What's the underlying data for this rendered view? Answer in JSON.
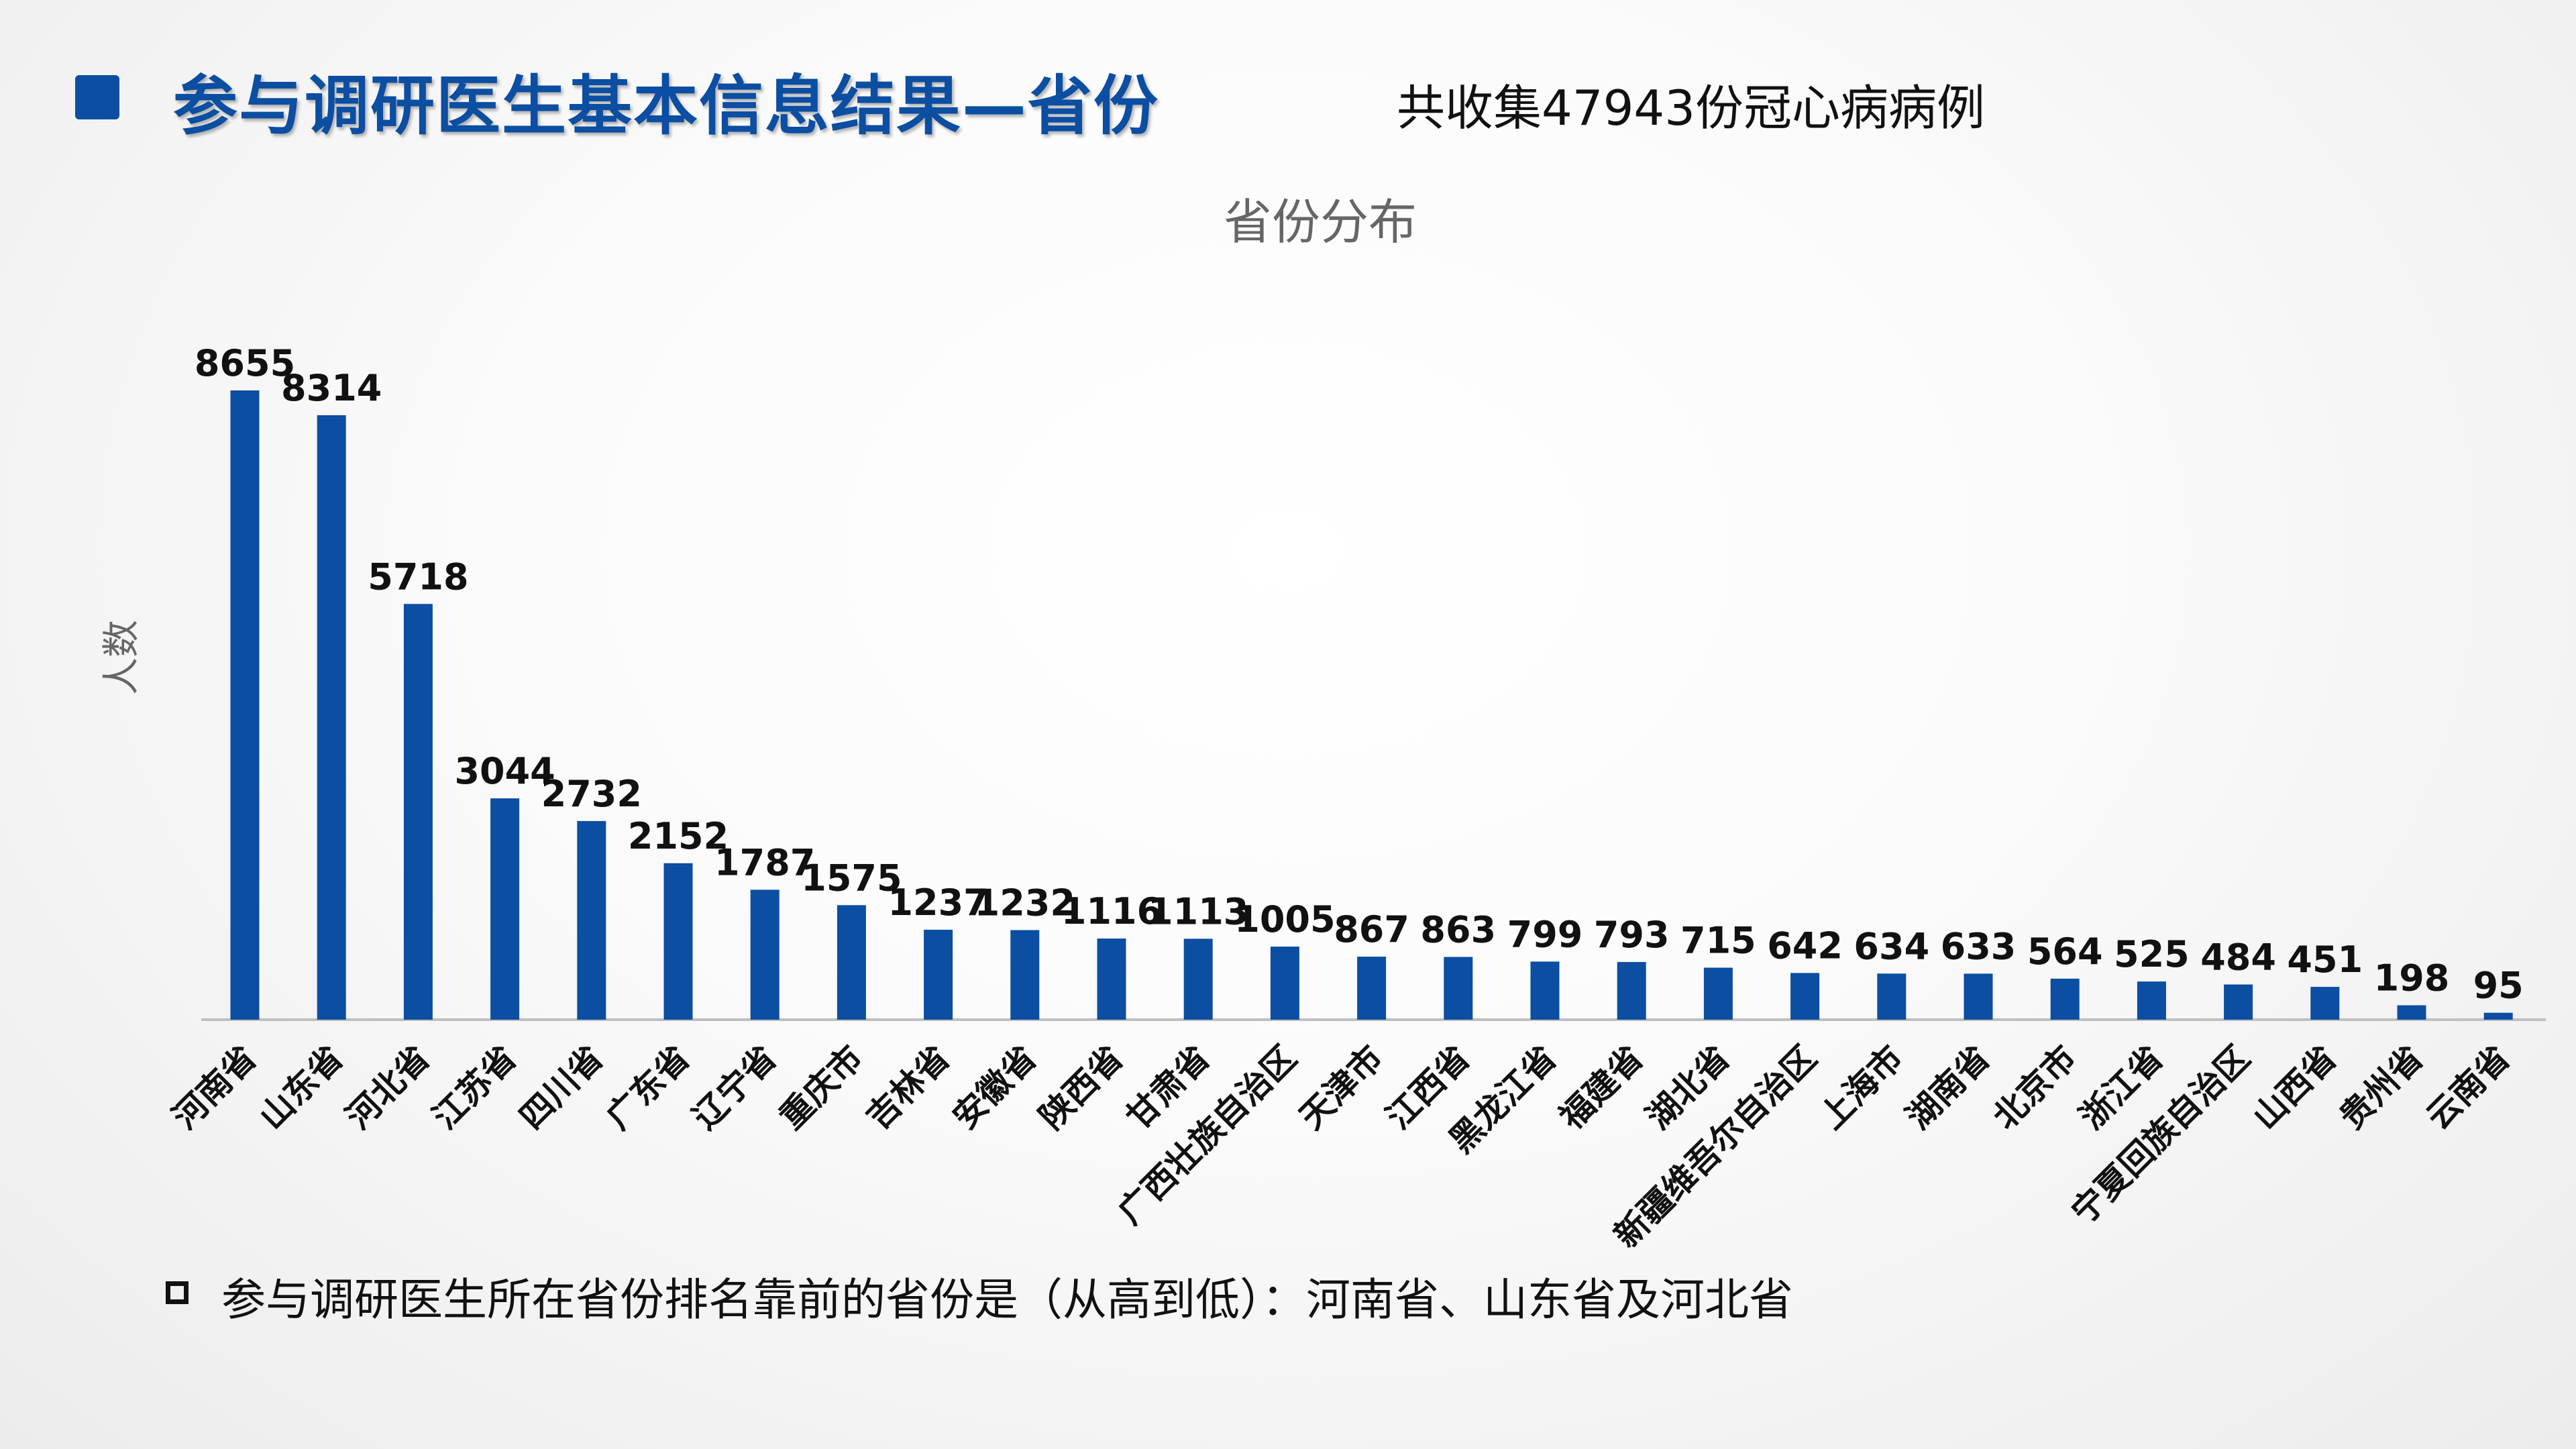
{
  "header": {
    "title": "参与调研医生基本信息结果—省份",
    "subtitle": "共收集47943份冠心病病例"
  },
  "footer": {
    "note": "参与调研医生所在省份排名靠前的省份是（从高到低）：河南省、山东省及河北省"
  },
  "colors": {
    "accent": "#0b4ea2",
    "bar": "#0b4ea2",
    "axis": "#bfbfbf",
    "title_text": "#666666"
  },
  "chart_data": {
    "type": "bar",
    "title": "省份分布",
    "ylabel": "人数",
    "xlabel": "",
    "grid": false,
    "ylim": [
      0,
      8655
    ],
    "categories": [
      "河南省",
      "山东省",
      "河北省",
      "江苏省",
      "四川省",
      "广东省",
      "辽宁省",
      "重庆市",
      "吉林省",
      "安徽省",
      "陕西省",
      "甘肃省",
      "广西壮族自治区",
      "天津市",
      "江西省",
      "黑龙江省",
      "福建省",
      "湖北省",
      "新疆维吾尔自治区",
      "上海市",
      "湖南省",
      "北京市",
      "浙江省",
      "宁夏回族自治区",
      "山西省",
      "贵州省",
      "云南省"
    ],
    "values": [
      8655,
      8314,
      5718,
      3044,
      2732,
      2152,
      1787,
      1575,
      1237,
      1232,
      1116,
      1113,
      1005,
      867,
      863,
      799,
      793,
      715,
      642,
      634,
      633,
      564,
      525,
      484,
      451,
      198,
      95
    ]
  }
}
